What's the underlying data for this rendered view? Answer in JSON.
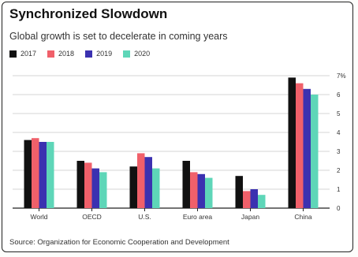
{
  "chart_data": {
    "type": "bar",
    "title": "Synchronized Slowdown",
    "subtitle": "Global growth is set to decelerate in coming years",
    "source": "Source: Organization for Economic Cooperation and Development",
    "categories": [
      "World",
      "OECD",
      "U.S.",
      "Euro area",
      "Japan",
      "China"
    ],
    "series": [
      {
        "name": "2017",
        "color": "#111111",
        "values": [
          3.6,
          2.5,
          2.2,
          2.5,
          1.7,
          6.9
        ]
      },
      {
        "name": "2018",
        "color": "#f0606a",
        "values": [
          3.7,
          2.4,
          2.9,
          1.9,
          0.9,
          6.6
        ]
      },
      {
        "name": "2019",
        "color": "#3b31b0",
        "values": [
          3.5,
          2.1,
          2.7,
          1.8,
          1.0,
          6.3
        ]
      },
      {
        "name": "2020",
        "color": "#5ed6b8",
        "values": [
          3.5,
          1.9,
          2.1,
          1.6,
          0.7,
          6.0
        ]
      }
    ],
    "yticks": [
      "0",
      "1",
      "2",
      "3",
      "4",
      "5",
      "6",
      "7%"
    ],
    "ylim": [
      0,
      7
    ],
    "grid": true,
    "legend_position": "top-left"
  }
}
